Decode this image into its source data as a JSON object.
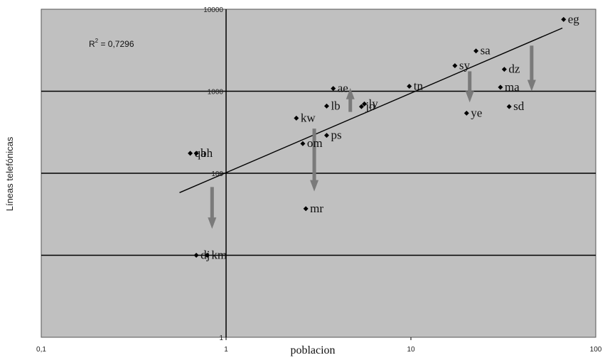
{
  "chart_data": {
    "type": "scatter",
    "x_scale": "log",
    "y_scale": "log",
    "xlabel": "poblacion",
    "ylabel": "Líneas telefónicas",
    "xlim": [
      0.1,
      100
    ],
    "ylim": [
      1,
      10000
    ],
    "x_tick_labels": [
      "0,1",
      "1",
      "10",
      "100"
    ],
    "y_tick_labels": [
      "1",
      "100",
      "1000",
      "10000"
    ],
    "grid": "horizontal major lines",
    "background": "#c0c0c0",
    "annotation": {
      "r2_prefix": "R",
      "r2_exp": "2",
      "r2_value": " = 0,7296"
    },
    "points": [
      {
        "label": "eg",
        "x": 67,
        "y": 7500
      },
      {
        "label": "sa",
        "x": 22.5,
        "y": 3100
      },
      {
        "label": "sy",
        "x": 17.3,
        "y": 2050
      },
      {
        "label": "dz",
        "x": 32,
        "y": 1850
      },
      {
        "label": "tn",
        "x": 9.8,
        "y": 1150
      },
      {
        "label": "ma",
        "x": 30.5,
        "y": 1120
      },
      {
        "label": "ae",
        "x": 3.8,
        "y": 1080
      },
      {
        "label": "lb",
        "x": 3.5,
        "y": 660
      },
      {
        "label": "ly",
        "x": 5.6,
        "y": 700
      },
      {
        "label": "jo",
        "x": 5.4,
        "y": 650
      },
      {
        "label": "sd",
        "x": 34,
        "y": 650
      },
      {
        "label": "ye",
        "x": 20,
        "y": 540
      },
      {
        "label": "kw",
        "x": 2.4,
        "y": 470
      },
      {
        "label": "ps",
        "x": 3.5,
        "y": 290
      },
      {
        "label": "om",
        "x": 2.6,
        "y": 230
      },
      {
        "label": "qa",
        "x": 0.64,
        "y": 175
      },
      {
        "label": "bh",
        "x": 0.69,
        "y": 175
      },
      {
        "label": "mr",
        "x": 2.7,
        "y": 37
      },
      {
        "label": "dj",
        "x": 0.69,
        "y": 10
      },
      {
        "label": "km",
        "x": 0.79,
        "y": 10
      }
    ],
    "trendline": {
      "x": [
        0.56,
        66
      ],
      "y": [
        58,
        5900
      ]
    },
    "arrows": [
      {
        "x": 0.84,
        "y_from": 68,
        "y_to": 21
      },
      {
        "x": 3.0,
        "y_from": 350,
        "y_to": 60
      },
      {
        "x": 4.7,
        "y_from": 560,
        "y_to": 1100
      },
      {
        "x": 20.8,
        "y_from": 1750,
        "y_to": 730
      },
      {
        "x": 45,
        "y_from": 3600,
        "y_to": 1000
      }
    ]
  }
}
